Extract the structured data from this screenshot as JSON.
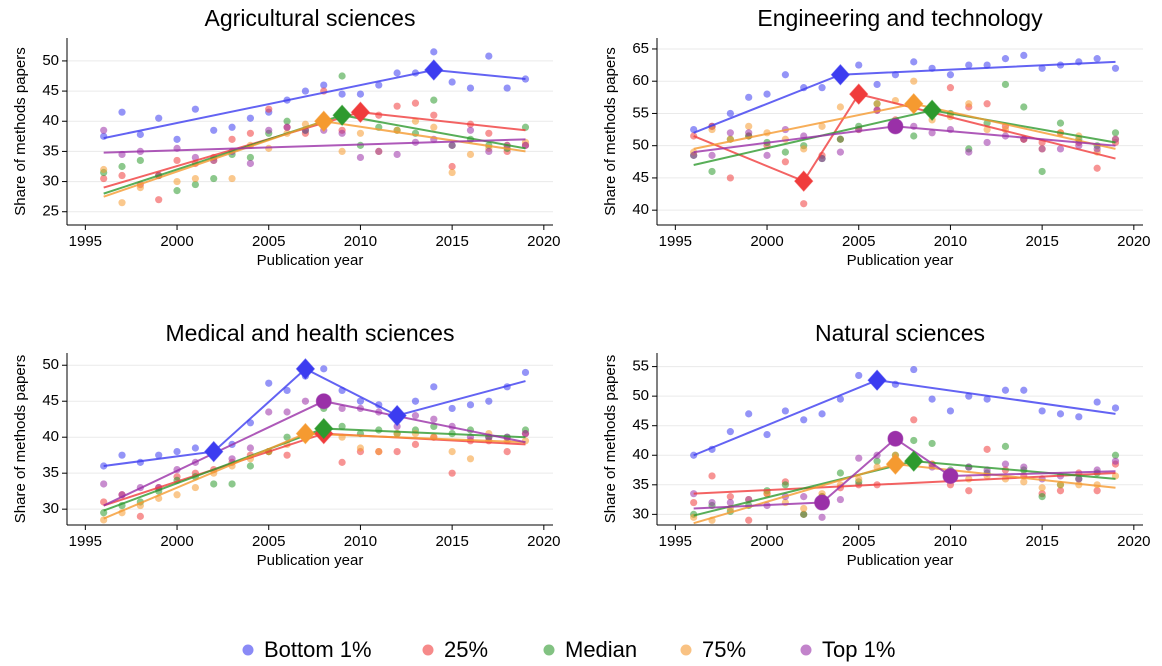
{
  "chart_data": [
    {
      "type": "scatter",
      "title": "Agricultural sciences",
      "x_label": "Publication year",
      "y_label": "Share of methods papers",
      "x": [
        1996,
        1997,
        1998,
        1999,
        2000,
        2001,
        2002,
        2003,
        2004,
        2005,
        2006,
        2007,
        2008,
        2009,
        2010,
        2011,
        2012,
        2013,
        2014,
        2015,
        2016,
        2017,
        2018,
        2019
      ],
      "xlim": [
        1994,
        2020.5
      ],
      "xticks": [
        1995,
        2000,
        2005,
        2010,
        2015,
        2020
      ],
      "ylim": [
        22.8,
        53.8
      ],
      "yticks": [
        25,
        30,
        35,
        40,
        45,
        50
      ],
      "grid": true,
      "series": [
        {
          "name": "Bottom 1%",
          "color": "#3c3cf0",
          "break_marker": "diamond",
          "values": [
            37.5,
            41.5,
            37.8,
            40.5,
            37,
            42,
            38.5,
            39,
            40.5,
            41.5,
            43.5,
            45,
            46,
            44.5,
            44.5,
            46,
            48,
            48,
            51.5,
            46.5,
            45.5,
            50.8,
            45.5,
            47
          ],
          "fit_x": [
            1996,
            2014,
            2019
          ],
          "fit_y": [
            37.2,
            48.5,
            47
          ]
        },
        {
          "name": "25%",
          "color": "#f03c3c",
          "break_marker": "diamond",
          "values": [
            30.5,
            31,
            29.5,
            27,
            33.5,
            33,
            34,
            37,
            38,
            42,
            39,
            38,
            45,
            38.5,
            41,
            41,
            42.5,
            43,
            41,
            32.5,
            39.5,
            38,
            35,
            36
          ],
          "fit_x": [
            1996,
            2010,
            2019
          ],
          "fit_y": [
            29,
            41.5,
            38.5
          ]
        },
        {
          "name": "Median",
          "color": "#2e9a2e",
          "break_marker": "diamond",
          "values": [
            31.5,
            32.5,
            33.5,
            31,
            28.5,
            29.5,
            30.5,
            34.5,
            34,
            38,
            40,
            38.5,
            39.5,
            47.5,
            36,
            39,
            38.5,
            38,
            43.5,
            36,
            37,
            36,
            35.5,
            39
          ],
          "fit_x": [
            1996,
            2009,
            2019
          ],
          "fit_y": [
            28,
            41,
            35.5
          ]
        },
        {
          "name": "75%",
          "color": "#f59a30",
          "break_marker": "diamond",
          "values": [
            32,
            26.5,
            29,
            31,
            30,
            30.5,
            33.5,
            30.5,
            36,
            35.5,
            38,
            39.5,
            40.5,
            35,
            38,
            35,
            38.5,
            40,
            39,
            31.5,
            34.5,
            35.5,
            36,
            36.5
          ],
          "fit_x": [
            1996,
            2008,
            2019
          ],
          "fit_y": [
            27.5,
            40,
            35
          ]
        },
        {
          "name": "Top 1%",
          "color": "#9a30a8",
          "break_marker": "circle",
          "values": [
            38.5,
            34.5,
            35,
            31,
            35.5,
            34,
            33.5,
            35,
            33,
            38.5,
            39,
            38.5,
            38.5,
            38,
            34,
            35,
            34.5,
            36.5,
            37,
            36,
            38.5,
            35,
            36,
            36
          ],
          "fit_x": [
            1996,
            2019
          ],
          "fit_y": [
            34.8,
            37
          ]
        }
      ]
    },
    {
      "type": "scatter",
      "title": "Engineering and technology",
      "x_label": "Publication year",
      "y_label": "Share of methods papers",
      "x": [
        1996,
        1997,
        1998,
        1999,
        2000,
        2001,
        2002,
        2003,
        2004,
        2005,
        2006,
        2007,
        2008,
        2009,
        2010,
        2011,
        2012,
        2013,
        2014,
        2015,
        2016,
        2017,
        2018,
        2019
      ],
      "xlim": [
        1994,
        2020.5
      ],
      "xticks": [
        1995,
        2000,
        2005,
        2010,
        2015,
        2020
      ],
      "ylim": [
        37.7,
        66.7
      ],
      "yticks": [
        40,
        45,
        50,
        55,
        60,
        65
      ],
      "grid": true,
      "series": [
        {
          "name": "Bottom 1%",
          "color": "#3c3cf0",
          "break_marker": "diamond",
          "values": [
            52.5,
            53,
            55,
            57.5,
            58,
            61,
            59,
            59,
            60.5,
            62.5,
            59.5,
            61,
            63,
            62,
            61,
            62.5,
            62.5,
            63.5,
            64,
            62,
            62.5,
            63,
            63.5,
            62
          ],
          "fit_x": [
            1996,
            2004,
            2019
          ],
          "fit_y": [
            52,
            61,
            63
          ]
        },
        {
          "name": "25%",
          "color": "#f03c3c",
          "break_marker": "diamond",
          "values": [
            51.5,
            53,
            45,
            51.5,
            50,
            47.5,
            41,
            48.5,
            51,
            57.5,
            55.5,
            54,
            56.5,
            55,
            59,
            56,
            56.5,
            53,
            51,
            50.5,
            52,
            50.5,
            46.5,
            50.5
          ],
          "fit_x": [
            1996,
            2002,
            2005,
            2019
          ],
          "fit_y": [
            51.5,
            44.5,
            58,
            48
          ]
        },
        {
          "name": "Median",
          "color": "#2e9a2e",
          "break_marker": "diamond",
          "values": [
            48.5,
            46,
            51,
            51.5,
            50.5,
            49,
            50,
            48,
            51,
            53,
            56.5,
            52.5,
            51.5,
            55,
            55,
            49.5,
            53.5,
            59.5,
            56,
            46,
            53.5,
            51,
            50,
            52
          ],
          "fit_x": [
            1996,
            2009,
            2019
          ],
          "fit_y": [
            47,
            55.5,
            50.5
          ]
        },
        {
          "name": "75%",
          "color": "#f59a30",
          "break_marker": "diamond",
          "values": [
            49,
            52.5,
            51,
            53,
            52,
            51,
            49.5,
            53,
            56,
            52.5,
            56.5,
            57,
            60,
            54,
            54.5,
            56.5,
            52.5,
            52.5,
            51,
            49.5,
            52,
            51.5,
            49,
            51
          ],
          "fit_x": [
            1996,
            2008,
            2019
          ],
          "fit_y": [
            49.5,
            56.5,
            49.5
          ]
        },
        {
          "name": "Top 1%",
          "color": "#9a30a8",
          "break_marker": "circle",
          "values": [
            48.5,
            48.5,
            52,
            52,
            48.5,
            52.5,
            51.5,
            48,
            49,
            52.5,
            55.5,
            52.5,
            53,
            52,
            52.5,
            49,
            50.5,
            51.5,
            51,
            49.5,
            49.5,
            50,
            49.5,
            51
          ],
          "fit_x": [
            1996,
            2007,
            2019
          ],
          "fit_y": [
            49,
            53,
            50
          ]
        }
      ]
    },
    {
      "type": "scatter",
      "title": "Medical and health sciences",
      "x_label": "Publication year",
      "y_label": "Share of methods papers",
      "x": [
        1996,
        1997,
        1998,
        1999,
        2000,
        2001,
        2002,
        2003,
        2004,
        2005,
        2006,
        2007,
        2008,
        2009,
        2010,
        2011,
        2012,
        2013,
        2014,
        2015,
        2016,
        2017,
        2018,
        2019
      ],
      "xlim": [
        1994,
        2020.5
      ],
      "xticks": [
        1995,
        2000,
        2005,
        2010,
        2015,
        2020
      ],
      "ylim": [
        27.8,
        51.7
      ],
      "yticks": [
        30,
        35,
        40,
        45,
        50
      ],
      "grid": true,
      "series": [
        {
          "name": "Bottom 1%",
          "color": "#3c3cf0",
          "break_marker": "diamond",
          "values": [
            36,
            37.5,
            36.5,
            37.5,
            38,
            38.5,
            38,
            39,
            42,
            47.5,
            46.5,
            48.5,
            49.5,
            46.5,
            45,
            44.5,
            43,
            45,
            47,
            44,
            44.5,
            45,
            47,
            49
          ],
          "fit_x": [
            1996,
            2002,
            2007,
            2012,
            2019
          ],
          "fit_y": [
            36,
            38,
            49.5,
            43,
            47.8
          ]
        },
        {
          "name": "25%",
          "color": "#f03c3c",
          "break_marker": "diamond",
          "values": [
            31,
            32,
            29,
            33,
            34.5,
            35,
            35.5,
            36.5,
            37.5,
            38,
            37.5,
            41,
            40.5,
            36.5,
            38,
            38,
            38,
            39,
            40,
            35,
            39.5,
            39.5,
            38,
            40.5
          ],
          "fit_x": [
            1996,
            2008,
            2019
          ],
          "fit_y": [
            30.5,
            40.5,
            39
          ]
        },
        {
          "name": "Median",
          "color": "#2e9a2e",
          "break_marker": "diamond",
          "values": [
            29.5,
            30.5,
            31,
            32.5,
            34,
            34.5,
            33.5,
            33.5,
            36,
            38,
            40,
            40.5,
            44,
            41.5,
            40.5,
            41,
            40.5,
            41,
            41.5,
            40.5,
            41,
            40,
            40,
            41
          ],
          "fit_x": [
            1996,
            2008,
            2019
          ],
          "fit_y": [
            29.8,
            41.2,
            40
          ]
        },
        {
          "name": "75%",
          "color": "#f59a30",
          "break_marker": "diamond",
          "values": [
            28.5,
            29.5,
            30.5,
            31.5,
            32,
            33,
            35,
            36,
            37,
            38,
            39,
            40,
            41,
            40,
            38.5,
            38,
            40.5,
            40.5,
            40,
            38,
            37,
            40.5,
            39.5,
            39.5
          ],
          "fit_x": [
            1996,
            2007,
            2019
          ],
          "fit_y": [
            28.7,
            40.5,
            39.3
          ]
        },
        {
          "name": "Top 1%",
          "color": "#9a30a8",
          "break_marker": "circle",
          "values": [
            33.5,
            32,
            33,
            33,
            35.5,
            36.5,
            37.5,
            37,
            38.5,
            43.5,
            43.5,
            45,
            45.5,
            44,
            44,
            43.5,
            41.5,
            43,
            42.5,
            41.5,
            40,
            40,
            40,
            40.5
          ],
          "fit_x": [
            1996,
            2008,
            2019
          ],
          "fit_y": [
            30.5,
            45,
            39.3
          ]
        }
      ]
    },
    {
      "type": "scatter",
      "title": "Natural sciences",
      "x_label": "Publication year",
      "y_label": "Share of methods papers",
      "x": [
        1996,
        1997,
        1998,
        1999,
        2000,
        2001,
        2002,
        2003,
        2004,
        2005,
        2006,
        2007,
        2008,
        2009,
        2010,
        2011,
        2012,
        2013,
        2014,
        2015,
        2016,
        2017,
        2018,
        2019
      ],
      "xlim": [
        1994,
        2020.5
      ],
      "xticks": [
        1995,
        2000,
        2005,
        2010,
        2015,
        2020
      ],
      "ylim": [
        28.2,
        57.3
      ],
      "yticks": [
        30,
        35,
        40,
        45,
        50,
        55
      ],
      "grid": true,
      "series": [
        {
          "name": "Bottom 1%",
          "color": "#3c3cf0",
          "break_marker": "diamond",
          "values": [
            40,
            41,
            44,
            47,
            43.5,
            47.5,
            46,
            47,
            49.5,
            53.5,
            53,
            52,
            54.5,
            49.5,
            47.5,
            50,
            49.5,
            51,
            51,
            47.5,
            47,
            46.5,
            49,
            48
          ],
          "fit_x": [
            1996,
            2006,
            2019
          ],
          "fit_y": [
            40,
            52.7,
            47
          ]
        },
        {
          "name": "25%",
          "color": "#f03c3c",
          "break_marker": "diamond",
          "values": [
            32,
            36.5,
            33,
            29,
            33.5,
            35.5,
            30,
            33,
            34.5,
            35,
            35,
            38,
            46,
            38.5,
            35,
            34,
            41,
            37.5,
            36.5,
            33.5,
            34,
            37,
            34,
            38.5
          ],
          "fit_x": [
            1996,
            2019
          ],
          "fit_y": [
            33.5,
            37
          ]
        },
        {
          "name": "Median",
          "color": "#2e9a2e",
          "break_marker": "diamond",
          "values": [
            30,
            31.5,
            30.5,
            31.5,
            34,
            35,
            30,
            33,
            37,
            35.5,
            39,
            40,
            42.5,
            42,
            37.5,
            38,
            37,
            41.5,
            37.5,
            33,
            35,
            36,
            37,
            40
          ],
          "fit_x": [
            1996,
            2008,
            2019
          ],
          "fit_y": [
            29.8,
            39,
            36
          ]
        },
        {
          "name": "75%",
          "color": "#f59a30",
          "break_marker": "diamond",
          "values": [
            29.5,
            29,
            31,
            32.5,
            33.5,
            32,
            31,
            33.5,
            35,
            36,
            38,
            40,
            39,
            38.5,
            36.5,
            36,
            36.5,
            36,
            35.5,
            34.5,
            35,
            35,
            35,
            36.5
          ],
          "fit_x": [
            1996,
            2007,
            2019
          ],
          "fit_y": [
            28.5,
            38.5,
            34.5
          ]
        },
        {
          "name": "Top 1%",
          "color": "#9a30a8",
          "break_marker": "circle",
          "values": [
            33.5,
            32,
            32,
            32.5,
            31.5,
            33,
            33,
            29.5,
            32.5,
            39.5,
            40,
            43.5,
            39.5,
            38,
            36.5,
            38,
            37.5,
            38.5,
            38,
            36,
            36.5,
            36,
            37.5,
            39
          ],
          "fit_x": [
            1996,
            2003,
            2007,
            2010,
            2019
          ],
          "fit_y": [
            31,
            32,
            42.8,
            36.5,
            37.3
          ]
        }
      ]
    }
  ]
}
